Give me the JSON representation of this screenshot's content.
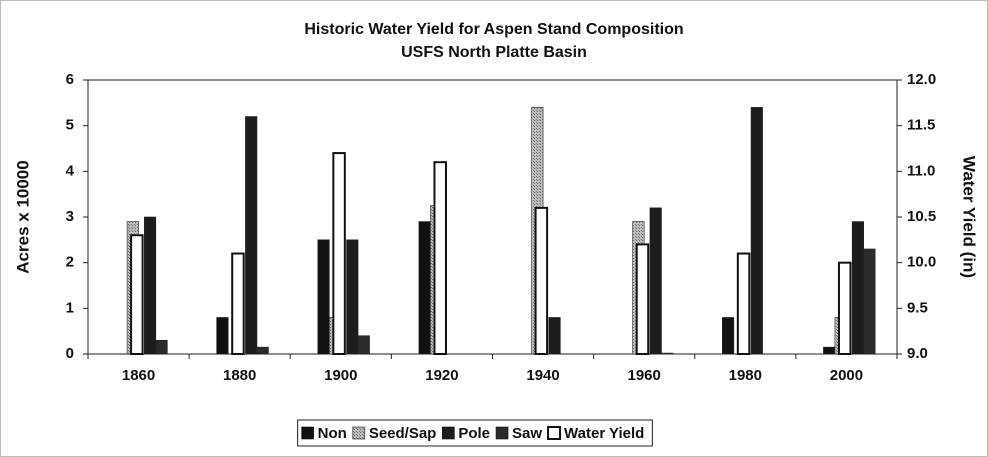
{
  "chart_data": {
    "type": "bar",
    "title": "Historic Water Yield for Aspen Stand Composition",
    "subtitle": "USFS North Platte Basin",
    "y_label": "Acres x 10000",
    "y2_label": "Water Yield (in)",
    "categories": [
      "1860",
      "1880",
      "1900",
      "1920",
      "1940",
      "1960",
      "1980",
      "2000"
    ],
    "series": [
      {
        "name": "Non",
        "color": "#111111",
        "values": [
          0,
          0.8,
          2.5,
          2.9,
          0,
          0,
          0.8,
          0.15
        ]
      },
      {
        "name": "Seed/Sap",
        "color": "#a0a0a0",
        "values": [
          2.9,
          0,
          0.8,
          3.25,
          5.4,
          2.9,
          0,
          0.8
        ]
      },
      {
        "name": "Pole",
        "color": "#1c1c1c",
        "values": [
          3.0,
          5.2,
          2.5,
          0,
          0.8,
          3.2,
          5.4,
          2.9
        ]
      },
      {
        "name": "Saw",
        "color": "#2a2a2a",
        "values": [
          0.3,
          0.15,
          0.4,
          0,
          0,
          0.02,
          0,
          2.3
        ]
      },
      {
        "name": "Water Yield",
        "color": "#ffffff",
        "axis": "y2",
        "values": [
          10.3,
          10.1,
          11.2,
          11.1,
          10.6,
          10.2,
          10.1,
          10.0
        ]
      }
    ],
    "ylim": [
      0,
      6
    ],
    "yticks": [
      0,
      1,
      2,
      3,
      4,
      5,
      6
    ],
    "y2lim": [
      9,
      12
    ],
    "y2ticks": [
      {
        "value": 9,
        "label": "9.0"
      },
      9.5,
      {
        "value": 10,
        "label": "10.0"
      },
      10.5,
      {
        "value": 11,
        "label": "11.0"
      },
      11.5,
      {
        "value": 12,
        "label": "12.0"
      }
    ],
    "legend": "bottom"
  }
}
